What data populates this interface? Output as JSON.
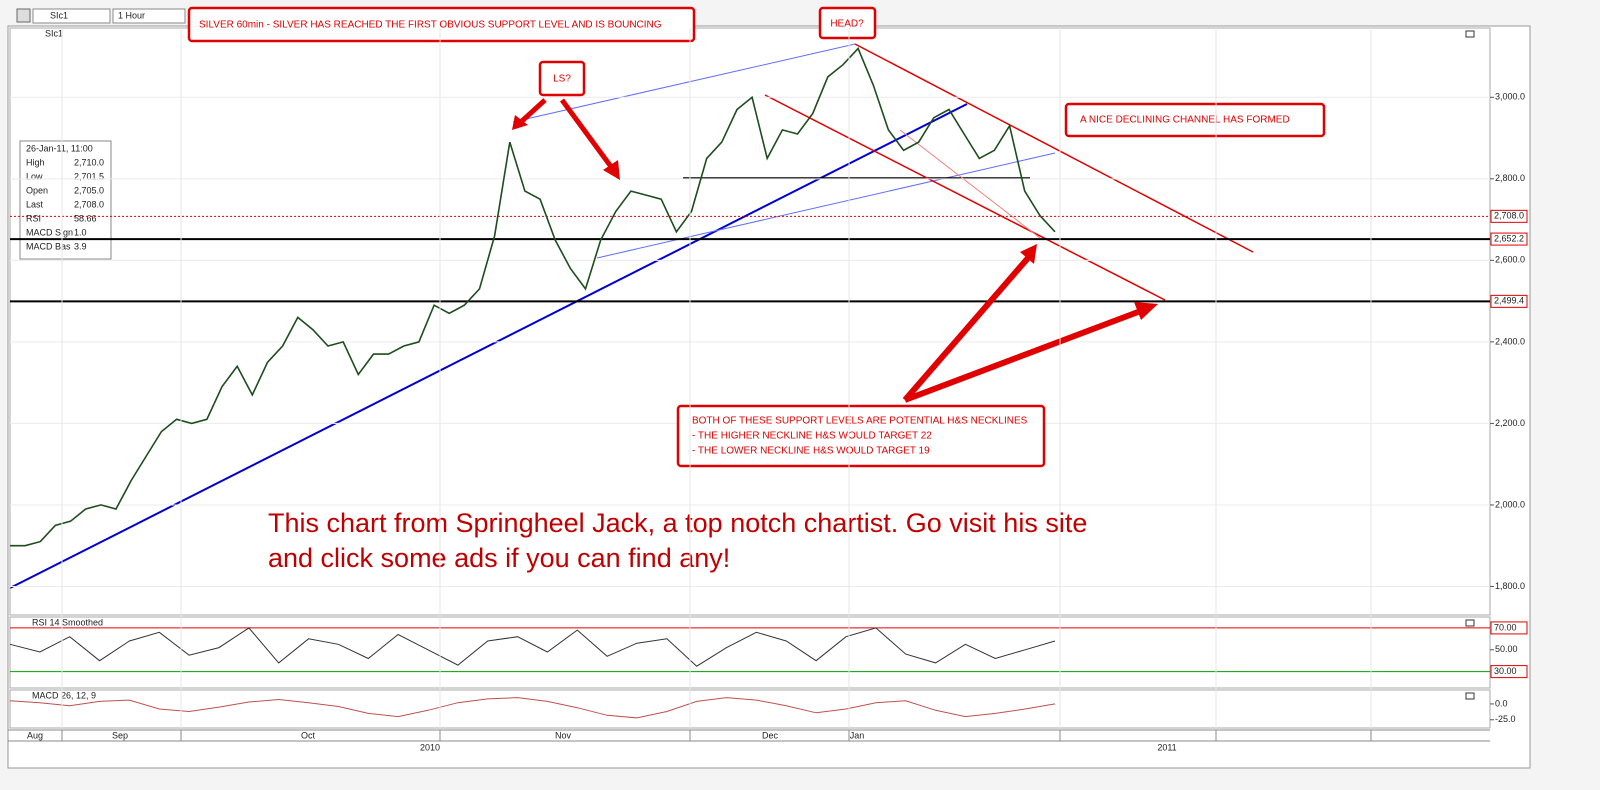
{
  "toolbar": {
    "symbol": "SIc1",
    "interval": "1 Hour"
  },
  "info_box": {
    "date": "26-Jan-11, 11:00",
    "rows": [
      [
        "High",
        "2,710.0"
      ],
      [
        "Low",
        "2,701.5"
      ],
      [
        "Open",
        "2,705.0"
      ],
      [
        "Last",
        "2,708.0"
      ],
      [
        "RSI",
        "58.66"
      ],
      [
        "MACD Sign",
        "1.0"
      ],
      [
        "MACD Bas",
        "3.9"
      ]
    ]
  },
  "annotations": {
    "header": "SILVER 60min - SILVER HAS REACHED THE FIRST OBVIOUS SUPPORT LEVEL AND IS BOUNCING",
    "head": "HEAD?",
    "left_shoulder": "LS?",
    "channel": "A NICE DECLINING CHANNEL HAS FORMED",
    "necklines": [
      "BOTH OF THESE SUPPORT LEVELS ARE POTENTIAL H&S NECKLINES",
      "- THE HIGHER NECKLINE H&S WOULD TARGET 22",
      "- THE LOWER NECKLINE H&S WOULD TARGET 19"
    ],
    "credit": [
      "This chart from Springheel Jack, a top notch chartist.   Go visit his site",
      "and click some ads if you can find any!"
    ]
  },
  "time_axis": {
    "months": [
      "Aug",
      "Sep",
      "Oct",
      "Nov",
      "Dec",
      "Jan"
    ],
    "years": [
      "2010",
      "2011"
    ]
  },
  "chart_data": [
    {
      "type": "line",
      "title": "SIc1",
      "ylim": [
        1730,
        3170
      ],
      "grid": true,
      "yticks": [
        {
          "value": 3000,
          "label": "3,000.0"
        },
        {
          "value": 2800,
          "label": "2,800.0"
        },
        {
          "value": 2600,
          "label": "2,600.0"
        },
        {
          "value": 2400,
          "label": "2,400.0"
        },
        {
          "value": 2200,
          "label": "2,200.0"
        },
        {
          "value": 2000,
          "label": "2,000.0"
        },
        {
          "value": 1800,
          "label": "1,800.0"
        }
      ],
      "levels": [
        {
          "value": 2708.0,
          "label": "2,708.0",
          "color": "#e00000",
          "style": "dotted"
        },
        {
          "value": 2652.2,
          "label": "2,652.2",
          "color": "#000000",
          "style": "solid"
        },
        {
          "value": 2499.4,
          "label": "2,499.4",
          "color": "#000000",
          "style": "solid"
        }
      ],
      "series": [
        {
          "color": "#1d4d1d",
          "values": [
            1900,
            1900,
            1910,
            1950,
            1960,
            1990,
            2000,
            1990,
            2060,
            2120,
            2180,
            2210,
            2200,
            2210,
            2290,
            2340,
            2270,
            2350,
            2390,
            2460,
            2430,
            2390,
            2400,
            2320,
            2370,
            2370,
            2390,
            2400,
            2490,
            2470,
            2490,
            2530,
            2660,
            2890,
            2770,
            2750,
            2650,
            2580,
            2530,
            2650,
            2720,
            2770,
            2760,
            2750,
            2670,
            2720,
            2850,
            2890,
            2970,
            3000,
            2850,
            2920,
            2910,
            2960,
            3050,
            3080,
            3120,
            3030,
            2920,
            2870,
            2890,
            2950,
            2970,
            2910,
            2850,
            2870,
            2930,
            2770,
            2710,
            2670
          ]
        }
      ]
    },
    {
      "type": "line",
      "title": "RSI 14 Smoothed",
      "ylim": [
        15,
        80
      ],
      "grid": false,
      "yticks": [
        {
          "value": 50,
          "label": "50.00"
        }
      ],
      "levels": [
        {
          "value": 70,
          "label": "70.00",
          "color": "#e00000",
          "style": "solid"
        },
        {
          "value": 30,
          "label": "30.00",
          "color": "#00a000",
          "style": "solid"
        }
      ],
      "series": [
        {
          "color": "#333333",
          "values": [
            55,
            48,
            62,
            40,
            58,
            66,
            45,
            52,
            70,
            38,
            60,
            55,
            42,
            64,
            50,
            36,
            58,
            62,
            48,
            68,
            44,
            56,
            60,
            35,
            52,
            66,
            58,
            40,
            62,
            70,
            46,
            38,
            55,
            42,
            50,
            58
          ]
        }
      ]
    },
    {
      "type": "line",
      "title": "MACD 26, 12, 9",
      "ylim": [
        -38,
        22
      ],
      "grid": false,
      "yticks": [
        {
          "value": 0,
          "label": "0.0"
        },
        {
          "value": -25,
          "label": "-25.0"
        }
      ],
      "levels": [],
      "series": [
        {
          "color": "#c0504d",
          "values": [
            5,
            2,
            -3,
            4,
            6,
            -8,
            -12,
            -5,
            3,
            7,
            2,
            -4,
            -15,
            -20,
            -10,
            2,
            8,
            10,
            4,
            -6,
            -18,
            -22,
            -12,
            4,
            10,
            6,
            -3,
            -14,
            -8,
            2,
            5,
            -10,
            -20,
            -15,
            -8,
            0
          ]
        }
      ]
    }
  ]
}
